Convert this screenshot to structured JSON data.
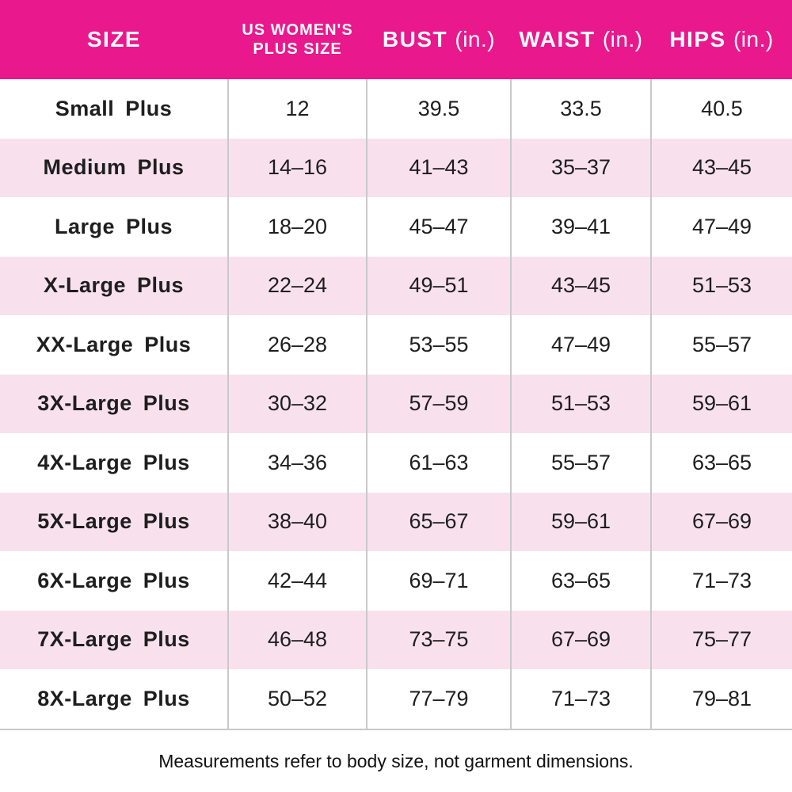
{
  "colors": {
    "header_bg": "#E9188C",
    "header_text": "#FFFFFF",
    "row_bg": "#FFFFFF",
    "row_alt_bg": "#F8E1ED",
    "grid_line": "#C9C9C9",
    "body_text": "#1E1E1E"
  },
  "table": {
    "row_keys": [
      "size",
      "us_plus",
      "bust",
      "waist",
      "hips"
    ],
    "columns": [
      {
        "label": "SIZE"
      },
      {
        "label_line1": "US WOMEN'S",
        "label_line2": "PLUS SIZE"
      },
      {
        "label": "BUST",
        "unit": "(in.)"
      },
      {
        "label": "WAIST",
        "unit": "(in.)"
      },
      {
        "label": "HIPS",
        "unit": "(in.)"
      }
    ],
    "rows": [
      {
        "size": "Small Plus",
        "us_plus": "12",
        "bust": "39.5",
        "waist": "33.5",
        "hips": "40.5"
      },
      {
        "size": "Medium Plus",
        "us_plus": "14–16",
        "bust": "41–43",
        "waist": "35–37",
        "hips": "43–45"
      },
      {
        "size": "Large Plus",
        "us_plus": "18–20",
        "bust": "45–47",
        "waist": "39–41",
        "hips": "47–49"
      },
      {
        "size": "X-Large Plus",
        "us_plus": "22–24",
        "bust": "49–51",
        "waist": "43–45",
        "hips": "51–53"
      },
      {
        "size": "XX-Large Plus",
        "us_plus": "26–28",
        "bust": "53–55",
        "waist": "47–49",
        "hips": "55–57"
      },
      {
        "size": "3X-Large Plus",
        "us_plus": "30–32",
        "bust": "57–59",
        "waist": "51–53",
        "hips": "59–61"
      },
      {
        "size": "4X-Large Plus",
        "us_plus": "34–36",
        "bust": "61–63",
        "waist": "55–57",
        "hips": "63–65"
      },
      {
        "size": "5X-Large Plus",
        "us_plus": "38–40",
        "bust": "65–67",
        "waist": "59–61",
        "hips": "67–69"
      },
      {
        "size": "6X-Large Plus",
        "us_plus": "42–44",
        "bust": "69–71",
        "waist": "63–65",
        "hips": "71–73"
      },
      {
        "size": "7X-Large Plus",
        "us_plus": "46–48",
        "bust": "73–75",
        "waist": "67–69",
        "hips": "75–77"
      },
      {
        "size": "8X-Large Plus",
        "us_plus": "50–52",
        "bust": "77–79",
        "waist": "71–73",
        "hips": "79–81"
      }
    ]
  },
  "footnote": "Measurements refer to body size, not garment dimensions."
}
